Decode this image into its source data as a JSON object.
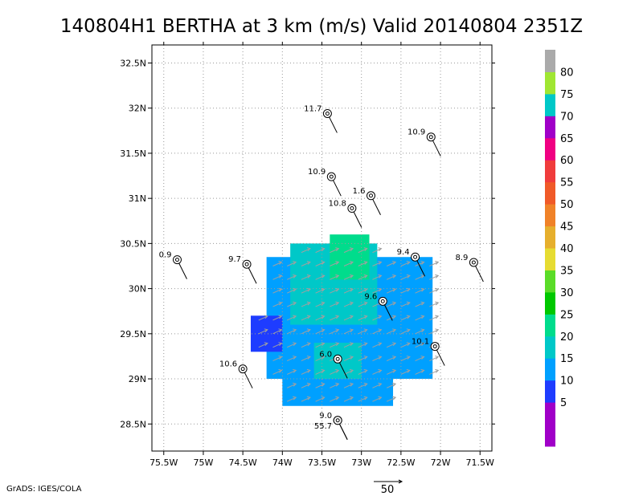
{
  "chart_data": {
    "type": "heatmap",
    "title": "140804H1 BERTHA at 3 km (m/s) Valid 20140804 2351Z",
    "xlim": [
      -75.65,
      -71.35
    ],
    "ylim": [
      28.2,
      32.7
    ],
    "x_ticks": [
      {
        "value": -75.5,
        "label": "75.5W"
      },
      {
        "value": -75.0,
        "label": "75W"
      },
      {
        "value": -74.5,
        "label": "74.5W"
      },
      {
        "value": -74.0,
        "label": "74W"
      },
      {
        "value": -73.5,
        "label": "73.5W"
      },
      {
        "value": -73.0,
        "label": "73W"
      },
      {
        "value": -72.5,
        "label": "72.5W"
      },
      {
        "value": -72.0,
        "label": "72W"
      },
      {
        "value": -71.5,
        "label": "71.5W"
      }
    ],
    "y_ticks": [
      {
        "value": 28.5,
        "label": "28.5N"
      },
      {
        "value": 29.0,
        "label": "29N"
      },
      {
        "value": 29.5,
        "label": "29.5N"
      },
      {
        "value": 30.0,
        "label": "30N"
      },
      {
        "value": 30.5,
        "label": "30.5N"
      },
      {
        "value": 31.0,
        "label": "31N"
      },
      {
        "value": 31.5,
        "label": "31.5N"
      },
      {
        "value": 32.0,
        "label": "32N"
      },
      {
        "value": 32.5,
        "label": "32.5N"
      }
    ],
    "grid": true,
    "colorbar": {
      "placement": "right",
      "bins": [
        {
          "label": "",
          "color": "#a000c8"
        },
        {
          "label": "5",
          "color": "#a000c8"
        },
        {
          "label": "10",
          "color": "#1e3cff"
        },
        {
          "label": "15",
          "color": "#00a0ff"
        },
        {
          "label": "20",
          "color": "#00c8c8"
        },
        {
          "label": "25",
          "color": "#00dc8c"
        },
        {
          "label": "30",
          "color": "#00c800"
        },
        {
          "label": "35",
          "color": "#5adc28"
        },
        {
          "label": "40",
          "color": "#e6dc32"
        },
        {
          "label": "45",
          "color": "#e6af2d"
        },
        {
          "label": "50",
          "color": "#f08228"
        },
        {
          "label": "55",
          "color": "#f05a28"
        },
        {
          "label": "60",
          "color": "#f03c3c"
        },
        {
          "label": "65",
          "color": "#f00082"
        },
        {
          "label": "70",
          "color": "#a000c8"
        },
        {
          "label": "75",
          "color": "#00c8c8"
        },
        {
          "label": "80",
          "color": "#a0e632"
        },
        {
          "label": "",
          "color": "#aaaaaa"
        }
      ]
    },
    "wind_field_regions": [
      {
        "value": 17,
        "lon_range": [
          -74.2,
          -72.1
        ],
        "lat_range": [
          29.0,
          30.35
        ]
      },
      {
        "value": 23,
        "lon_range": [
          -73.9,
          -72.8
        ],
        "lat_range": [
          29.6,
          30.5
        ]
      },
      {
        "value": 27,
        "lon_range": [
          -73.4,
          -72.9
        ],
        "lat_range": [
          30.1,
          30.6
        ]
      },
      {
        "value": 13,
        "lon_range": [
          -74.4,
          -74.0
        ],
        "lat_range": [
          29.3,
          29.7
        ]
      },
      {
        "value": 17,
        "lon_range": [
          -74.0,
          -72.6
        ],
        "lat_range": [
          28.7,
          29.3
        ]
      },
      {
        "value": 22,
        "lon_range": [
          -73.6,
          -73.0
        ],
        "lat_range": [
          29.0,
          29.4
        ]
      }
    ],
    "stations": [
      {
        "lon": -73.43,
        "lat": 31.94,
        "label": "11.7"
      },
      {
        "lon": -72.12,
        "lat": 31.68,
        "label": "10.9"
      },
      {
        "lon": -73.38,
        "lat": 31.24,
        "label": "10.9"
      },
      {
        "lon": -72.88,
        "lat": 31.03,
        "label": "1.6"
      },
      {
        "lon": -73.12,
        "lat": 30.89,
        "label": "10.8"
      },
      {
        "lon": -72.32,
        "lat": 30.35,
        "label": "9.4"
      },
      {
        "lon": -75.33,
        "lat": 30.32,
        "label": "0.9"
      },
      {
        "lon": -74.45,
        "lat": 30.27,
        "label": "9.7"
      },
      {
        "lon": -71.58,
        "lat": 30.29,
        "label": "8.9"
      },
      {
        "lon": -72.73,
        "lat": 29.86,
        "label": "9.6"
      },
      {
        "lon": -72.07,
        "lat": 29.36,
        "label": "10.1"
      },
      {
        "lon": -73.3,
        "lat": 29.22,
        "label": "6.0"
      },
      {
        "lon": -74.5,
        "lat": 29.11,
        "label": "10.6"
      },
      {
        "lon": -73.3,
        "lat": 28.54,
        "label": "9.0"
      },
      {
        "lon": -73.3,
        "lat": 28.54,
        "label": "55.7"
      }
    ],
    "reference_vector_label": "50"
  },
  "credit": "GrADS: IGES/COLA"
}
